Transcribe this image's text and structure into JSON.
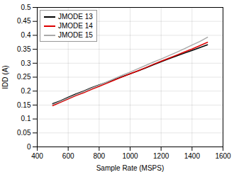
{
  "chart_data": {
    "type": "line",
    "xlabel": "Sample Rate (MSPS)",
    "ylabel": "IDD (A)",
    "xlim": [
      400,
      1600
    ],
    "ylim": [
      0,
      0.5
    ],
    "xticks": [
      400,
      600,
      800,
      1000,
      1200,
      1400,
      1600
    ],
    "yticks": [
      0,
      0.05,
      0.1,
      0.15,
      0.2,
      0.25,
      0.3,
      0.35,
      0.4,
      0.45,
      0.5
    ],
    "grid": true,
    "legend": "upper left",
    "x": [
      500,
      550,
      600,
      650,
      700,
      750,
      800,
      850,
      900,
      950,
      1000,
      1050,
      1100,
      1150,
      1200,
      1250,
      1300,
      1350,
      1400,
      1450,
      1500
    ],
    "series": [
      {
        "name": "JMODE 13",
        "color": "#000000",
        "values": [
          0.155,
          0.165,
          0.178,
          0.19,
          0.2,
          0.212,
          0.222,
          0.232,
          0.242,
          0.252,
          0.262,
          0.272,
          0.283,
          0.294,
          0.305,
          0.316,
          0.326,
          0.336,
          0.346,
          0.356,
          0.366
        ]
      },
      {
        "name": "JMODE 14",
        "color": "#dd0000",
        "values": [
          0.148,
          0.16,
          0.172,
          0.184,
          0.194,
          0.206,
          0.217,
          0.228,
          0.24,
          0.251,
          0.262,
          0.273,
          0.284,
          0.296,
          0.307,
          0.318,
          0.329,
          0.34,
          0.351,
          0.363,
          0.375
        ]
      },
      {
        "name": "JMODE 15",
        "color": "#aaaaaa",
        "values": [
          0.152,
          0.163,
          0.175,
          0.187,
          0.198,
          0.21,
          0.221,
          0.233,
          0.245,
          0.257,
          0.268,
          0.28,
          0.292,
          0.304,
          0.315,
          0.327,
          0.339,
          0.352,
          0.365,
          0.378,
          0.393
        ]
      }
    ]
  }
}
